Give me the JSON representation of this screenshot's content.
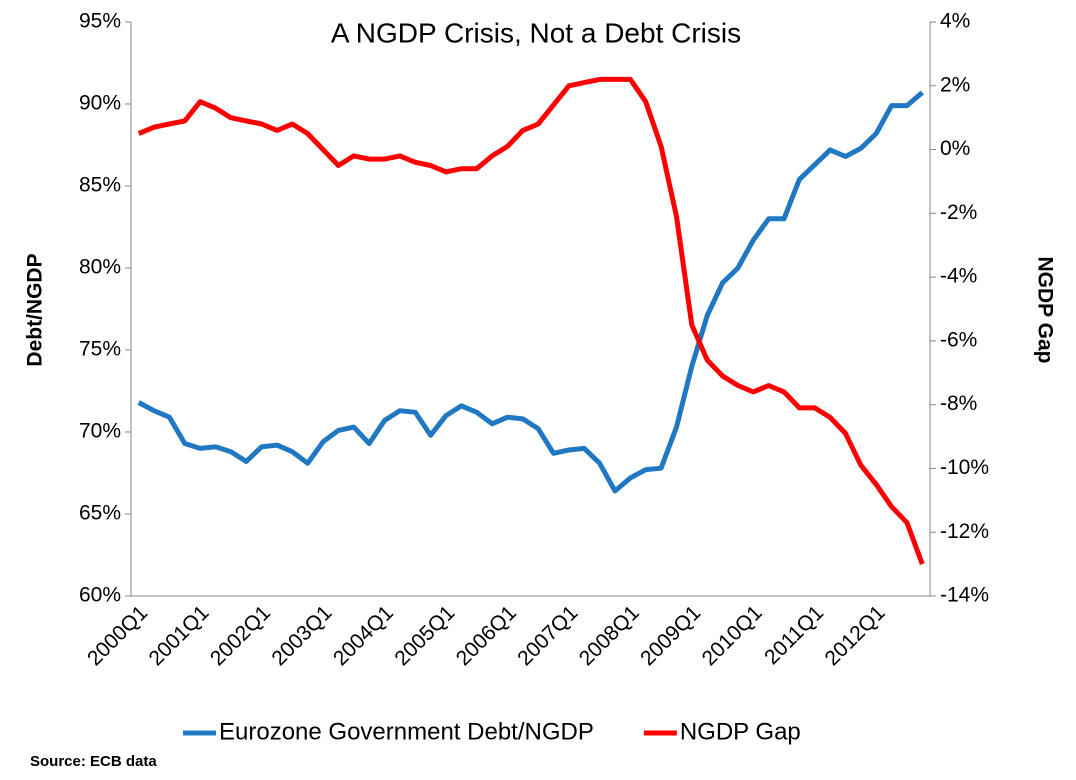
{
  "chart_data": {
    "type": "line",
    "title": "A NGDP Crisis, Not a Debt Crisis",
    "ylabel": "Debt/NGDP",
    "y2label": "NGDP Gap",
    "source": "Source: ECB data",
    "legend": "bottom",
    "categories": [
      "2000Q1",
      null,
      null,
      null,
      "2001Q1",
      null,
      null,
      null,
      "2002Q1",
      null,
      null,
      null,
      "2003Q1",
      null,
      null,
      null,
      "2004Q1",
      null,
      null,
      null,
      "2005Q1",
      null,
      null,
      null,
      "2006Q1",
      null,
      null,
      null,
      "2007Q1",
      null,
      null,
      null,
      "2008Q1",
      null,
      null,
      null,
      "2009Q1",
      null,
      null,
      null,
      "2010Q1",
      null,
      null,
      null,
      "2011Q1",
      null,
      null,
      null,
      "2012Q1",
      null,
      null,
      null
    ],
    "ylim": [
      60,
      95
    ],
    "yticks": [
      {
        "value": 60,
        "label": "60%"
      },
      {
        "value": 65,
        "label": "65%"
      },
      {
        "value": 70,
        "label": "70%"
      },
      {
        "value": 75,
        "label": "75%"
      },
      {
        "value": 80,
        "label": "80%"
      },
      {
        "value": 85,
        "label": "85%"
      },
      {
        "value": 90,
        "label": "90%"
      },
      {
        "value": 95,
        "label": "95%"
      }
    ],
    "y2lim": [
      -14,
      4
    ],
    "y2ticks": [
      {
        "value": -14,
        "label": "-14%"
      },
      {
        "value": -12,
        "label": "-12%"
      },
      {
        "value": -10,
        "label": "-10%"
      },
      {
        "value": -8,
        "label": "-8%"
      },
      {
        "value": -6,
        "label": "-6%"
      },
      {
        "value": -4,
        "label": "-4%"
      },
      {
        "value": -2,
        "label": "-2%"
      },
      {
        "value": 0,
        "label": "0%"
      },
      {
        "value": 2,
        "label": "2%"
      },
      {
        "value": 4,
        "label": "4%"
      }
    ],
    "series": [
      {
        "name": "Eurozone Government Debt/NGDP",
        "color": "#1f78c1",
        "axis": "y",
        "values": [
          71.8,
          71.3,
          70.9,
          69.3,
          69.0,
          69.1,
          68.8,
          68.2,
          69.1,
          69.2,
          68.8,
          68.1,
          69.4,
          70.1,
          70.3,
          69.3,
          70.7,
          71.3,
          71.2,
          69.8,
          71.0,
          71.6,
          71.2,
          70.5,
          70.9,
          70.8,
          70.2,
          68.7,
          68.9,
          69.0,
          68.1,
          66.4,
          67.2,
          67.7,
          67.8,
          70.3,
          74.0,
          77.1,
          79.1,
          80.0,
          81.7,
          83.0,
          83.0,
          85.4,
          86.3,
          87.2,
          86.8,
          87.3,
          88.2,
          89.9,
          89.9,
          90.7
        ]
      },
      {
        "name": "NGDP Gap",
        "color": "#ff0000",
        "axis": "y2",
        "values": [
          0.5,
          0.7,
          0.8,
          0.9,
          1.5,
          1.3,
          1.0,
          0.9,
          0.8,
          0.6,
          0.8,
          0.5,
          0.0,
          -0.5,
          -0.2,
          -0.3,
          -0.3,
          -0.2,
          -0.4,
          -0.5,
          -0.7,
          -0.6,
          -0.6,
          -0.2,
          0.1,
          0.6,
          0.8,
          1.4,
          2.0,
          2.1,
          2.2,
          2.2,
          2.2,
          1.5,
          0.1,
          -2.1,
          -5.5,
          -6.6,
          -7.1,
          -7.4,
          -7.6,
          -7.4,
          -7.6,
          -8.1,
          -8.1,
          -8.4,
          -8.9,
          -9.9,
          -10.5,
          -11.2,
          -11.7,
          -13.0
        ]
      }
    ]
  }
}
